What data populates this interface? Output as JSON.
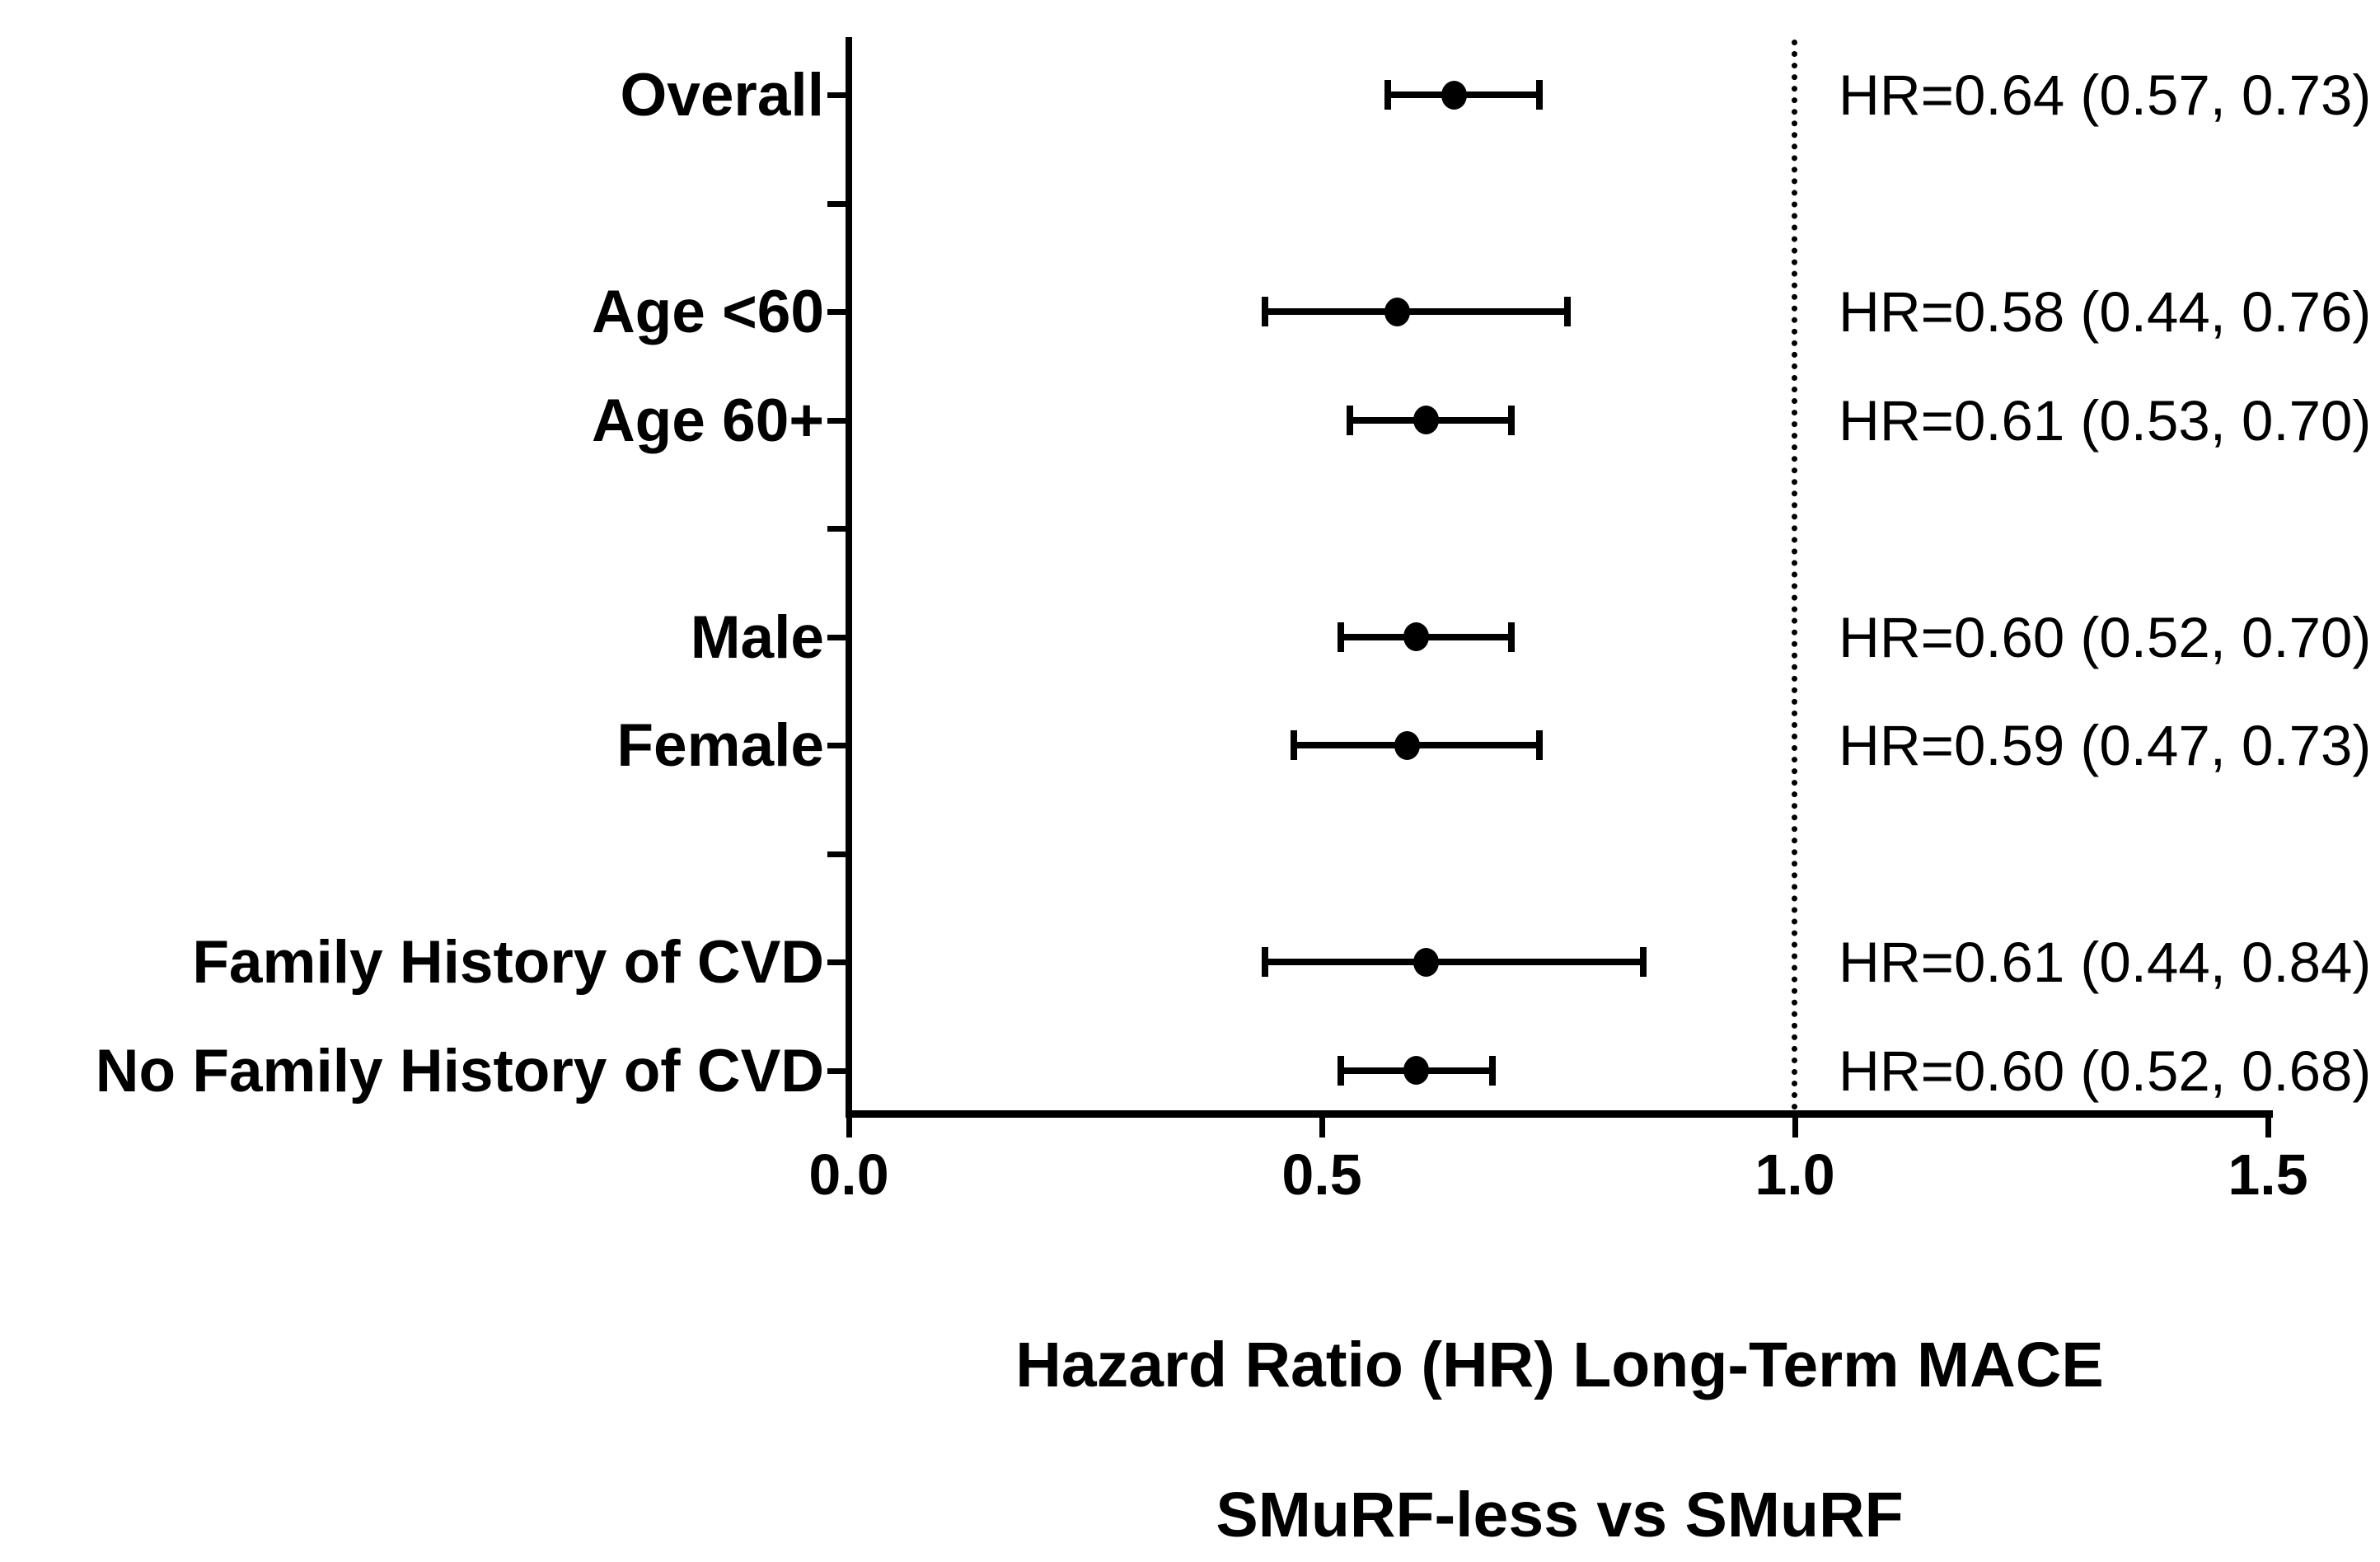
{
  "figure": {
    "background": "#ffffff",
    "ink_color": "#000000"
  },
  "chart_data": {
    "type": "scatter",
    "variant": "forest-plot",
    "title": "",
    "xlabel": "Hazard Ratio (HR) Long-Term MACE",
    "footer_label": "SMuRF-less vs SMuRF",
    "xlim": [
      0.0,
      1.5
    ],
    "x_ticks": [
      "0.0",
      "0.5",
      "1.0",
      "1.5"
    ],
    "x_tick_values": [
      0.0,
      0.5,
      1.0,
      1.5
    ],
    "reference_line_x": 1.0,
    "reference_line_style": "dotted",
    "grid": false,
    "legend": "none",
    "marker": "filled-circle",
    "n_slots": 10,
    "spacer_slots": [
      1,
      4,
      7
    ],
    "rows": [
      {
        "slot": 0,
        "label": "Overall",
        "hr": 0.64,
        "ci_low": 0.57,
        "ci_high": 0.73,
        "annotation": "HR=0.64 (0.57, 0.73)"
      },
      {
        "slot": 2,
        "label": "Age <60",
        "hr": 0.58,
        "ci_low": 0.44,
        "ci_high": 0.76,
        "annotation": "HR=0.58 (0.44, 0.76)"
      },
      {
        "slot": 3,
        "label": "Age 60+",
        "hr": 0.61,
        "ci_low": 0.53,
        "ci_high": 0.7,
        "annotation": "HR=0.61 (0.53, 0.70)"
      },
      {
        "slot": 5,
        "label": "Male",
        "hr": 0.6,
        "ci_low": 0.52,
        "ci_high": 0.7,
        "annotation": "HR=0.60 (0.52, 0.70)"
      },
      {
        "slot": 6,
        "label": "Female",
        "hr": 0.59,
        "ci_low": 0.47,
        "ci_high": 0.73,
        "annotation": "HR=0.59 (0.47, 0.73)"
      },
      {
        "slot": 8,
        "label": "Family History of CVD",
        "hr": 0.61,
        "ci_low": 0.44,
        "ci_high": 0.84,
        "annotation": "HR=0.61 (0.44, 0.84)"
      },
      {
        "slot": 9,
        "label": "No Family History of CVD",
        "hr": 0.6,
        "ci_low": 0.52,
        "ci_high": 0.68,
        "annotation": "HR=0.60 (0.52, 0.68)"
      }
    ]
  }
}
